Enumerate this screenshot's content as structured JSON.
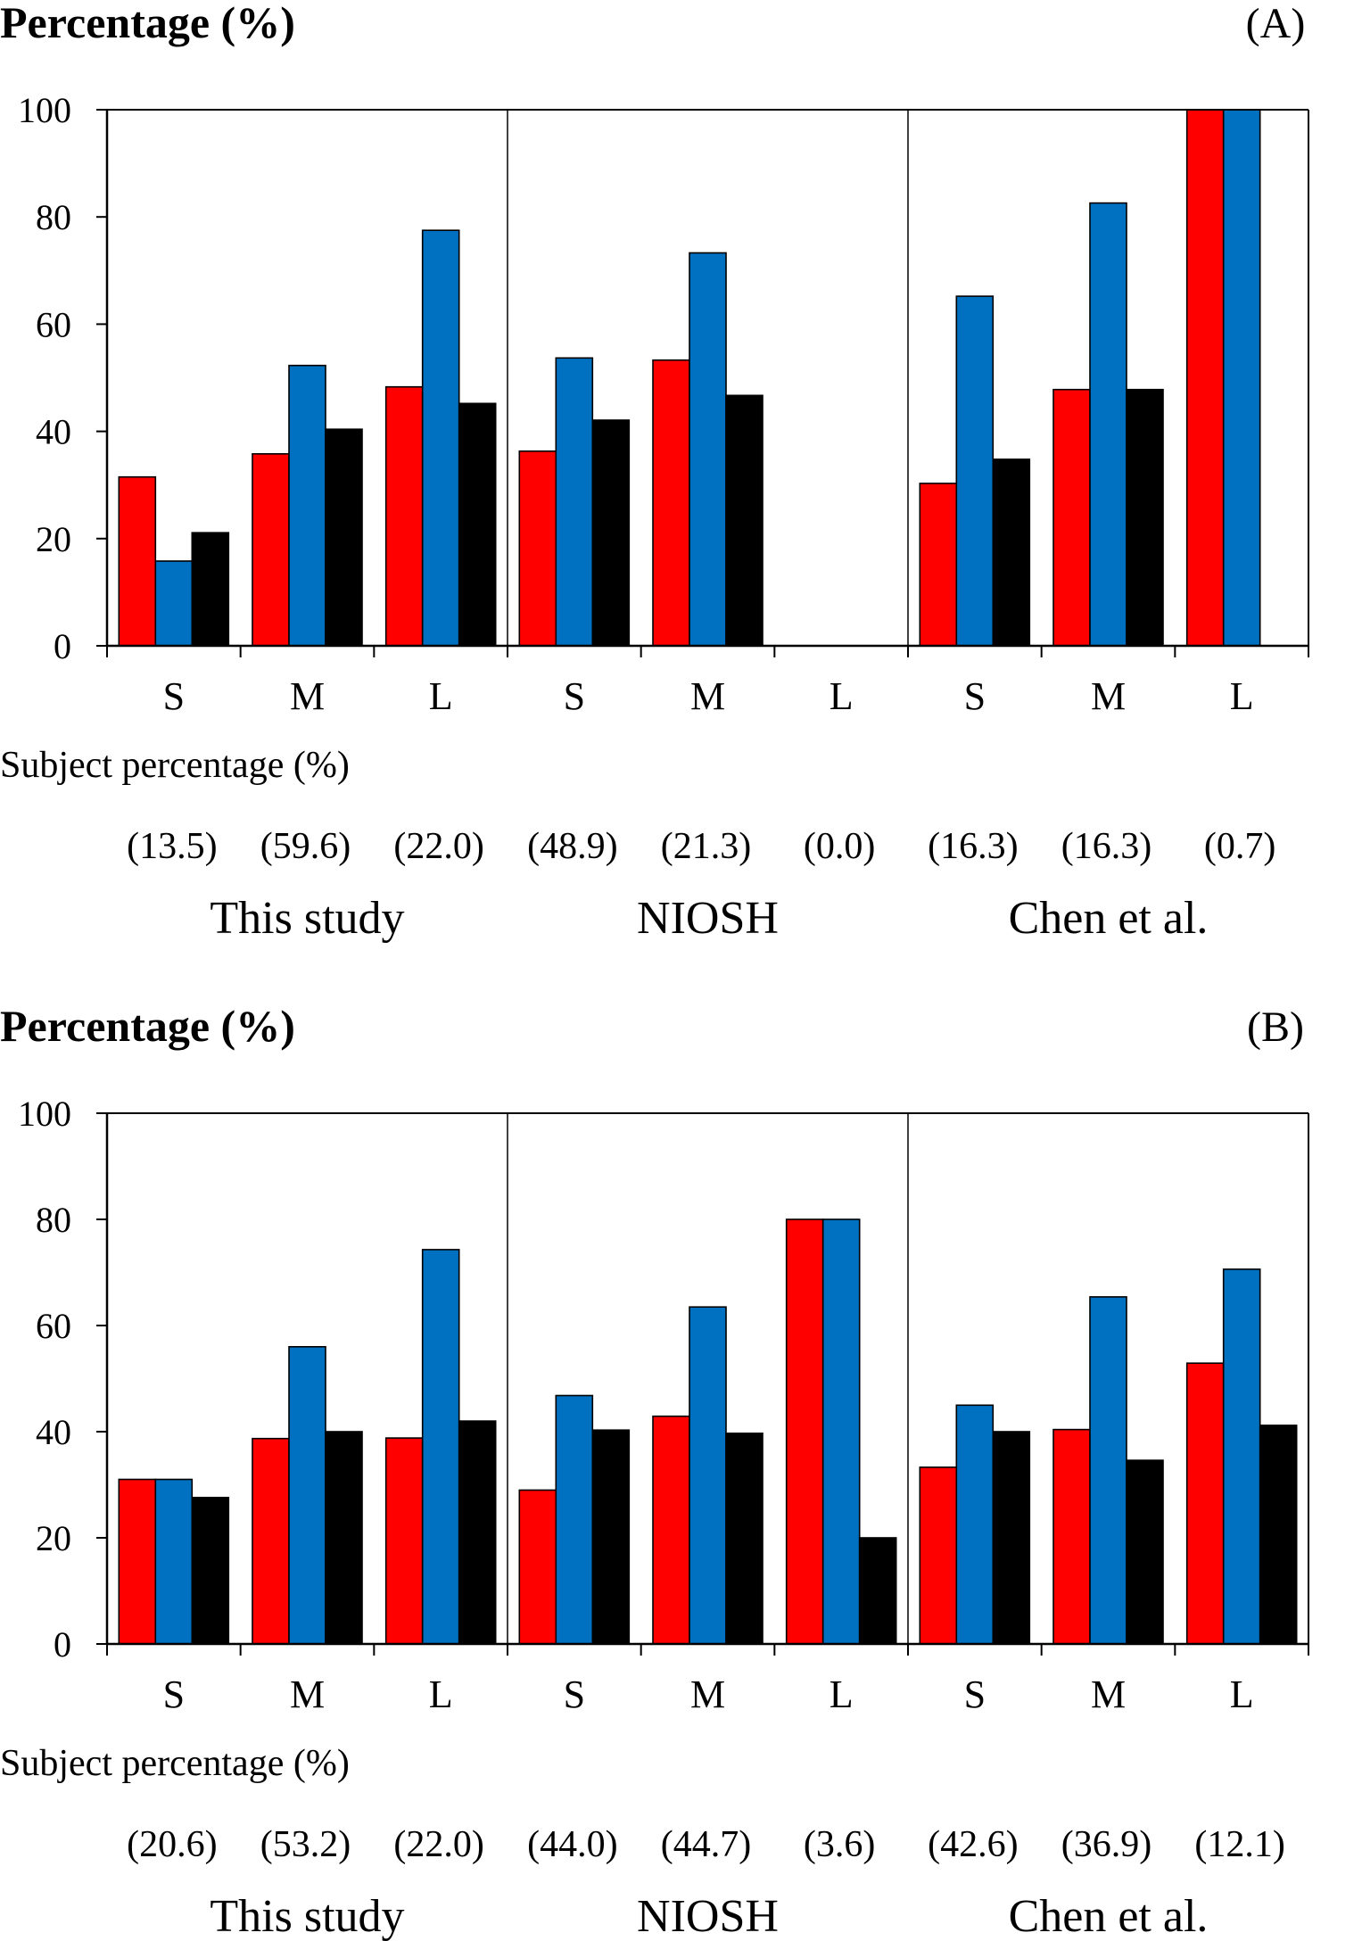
{
  "chart_data": [
    {
      "type": "bar",
      "panel_label": "(A)",
      "ylabel": "Percentage (%)",
      "ylim": [
        0,
        100
      ],
      "yticks": [
        0,
        20,
        40,
        60,
        80,
        100
      ],
      "categories": [
        "S",
        "M",
        "L",
        "S",
        "M",
        "L",
        "S",
        "M",
        "L"
      ],
      "groups": [
        "This study",
        "NIOSH",
        "Chen et al."
      ],
      "subject_label": "Subject percentage (%)",
      "subject_percentages": [
        "(13.5)",
        "(59.6)",
        "(22.0)",
        "(48.9)",
        "(21.3)",
        "(0.0)",
        "(16.3)",
        "(16.3)",
        "(0.7)"
      ],
      "series": [
        {
          "color": "#ff0000",
          "values": [
            31.5,
            35.8,
            48.3,
            36.3,
            53.3,
            0,
            30.3,
            47.8,
            100
          ]
        },
        {
          "color": "#0070c0",
          "values": [
            15.8,
            52.3,
            77.5,
            53.7,
            73.3,
            0,
            65.2,
            82.6,
            100
          ]
        },
        {
          "color": "#000000",
          "values": [
            21.1,
            40.4,
            45.2,
            42.1,
            46.7,
            0,
            34.8,
            47.8,
            0
          ]
        }
      ]
    },
    {
      "type": "bar",
      "panel_label": "(B)",
      "ylabel": "Percentage (%)",
      "ylim": [
        0,
        100
      ],
      "yticks": [
        0,
        20,
        40,
        60,
        80,
        100
      ],
      "categories": [
        "S",
        "M",
        "L",
        "S",
        "M",
        "L",
        "S",
        "M",
        "L"
      ],
      "groups": [
        "This study",
        "NIOSH",
        "Chen et al."
      ],
      "subject_label": "Subject percentage (%)",
      "subject_percentages": [
        "(20.6)",
        "(53.2)",
        "(22.0)",
        "(44.0)",
        "(44.7)",
        "(3.6)",
        "(42.6)",
        "(36.9)",
        "(12.1)"
      ],
      "series": [
        {
          "color": "#ff0000",
          "values": [
            31.0,
            38.7,
            38.8,
            29.0,
            42.9,
            80.0,
            33.3,
            40.4,
            52.9
          ]
        },
        {
          "color": "#0070c0",
          "values": [
            31.0,
            56.0,
            74.3,
            46.8,
            63.5,
            80.0,
            45.0,
            65.4,
            70.6
          ]
        },
        {
          "color": "#000000",
          "values": [
            27.6,
            40.0,
            42.0,
            40.3,
            39.7,
            20.0,
            40.0,
            34.6,
            41.2
          ]
        }
      ]
    }
  ]
}
